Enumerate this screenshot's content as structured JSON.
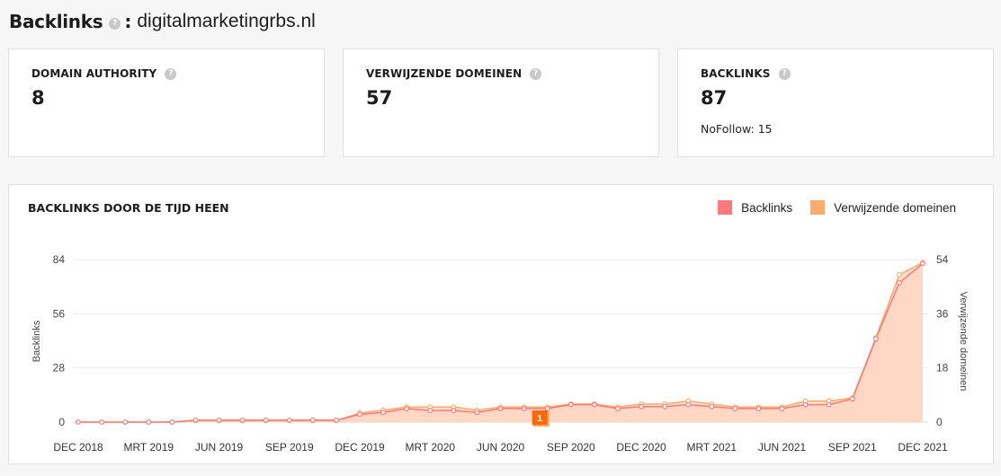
{
  "header": {
    "title": "Backlinks",
    "help": "?",
    "colon": ":",
    "domain": "digitalmarketingrbs.nl"
  },
  "cards": [
    {
      "label": "DOMAIN AUTHORITY",
      "value": "8",
      "help": "?"
    },
    {
      "label": "VERWIJZENDE DOMEINEN",
      "value": "57",
      "help": "?"
    },
    {
      "label": "BACKLINKS",
      "value": "87",
      "help": "?",
      "sub": "NoFollow: 15"
    }
  ],
  "colors": {
    "backlinks": "#f87a7a",
    "domains": "#fdab6d",
    "fill": "#fdd3bd",
    "marker": "#ff6a00"
  },
  "chart": {
    "title": "BACKLINKS DOOR DE TIJD HEEN",
    "annotation": "1"
  },
  "chart_data": {
    "type": "area",
    "title": "BACKLINKS DOOR DE TIJD HEEN",
    "ylabel": "Backlinks",
    "y2label": "Verwijzende domeinen",
    "ylim": [
      0,
      84
    ],
    "y2lim": [
      0,
      54
    ],
    "yticks": [
      0,
      28,
      56,
      84
    ],
    "y2ticks": [
      0,
      18,
      36,
      54
    ],
    "x_ticks": [
      "DEC 2018",
      "MRT 2019",
      "JUN 2019",
      "SEP 2019",
      "DEC 2019",
      "MRT 2020",
      "JUN 2020",
      "SEP 2020",
      "DEC 2020",
      "MRT 2021",
      "JUN 2021",
      "SEP 2021",
      "DEC 2021"
    ],
    "legend_position": "top-right",
    "grid": true,
    "series": [
      {
        "name": "Backlinks",
        "axis": "left",
        "values": [
          0,
          0,
          0,
          0,
          0,
          1,
          1,
          1,
          1,
          1,
          1,
          1,
          4,
          5,
          7,
          6,
          6,
          5,
          7,
          7,
          7,
          9,
          9,
          7,
          8,
          8,
          9,
          8,
          7,
          7,
          7,
          9,
          9,
          12,
          43,
          72,
          82
        ]
      },
      {
        "name": "Verwijzende domeinen",
        "axis": "right",
        "values": [
          0,
          0,
          0,
          0,
          0,
          0.5,
          0.5,
          0.5,
          0.5,
          0.5,
          0.5,
          0.5,
          3,
          4,
          5,
          5,
          5,
          4,
          5,
          5,
          5,
          6,
          6,
          5,
          6,
          6,
          7,
          6,
          5,
          5,
          5,
          7,
          7,
          8,
          28,
          49,
          53
        ]
      }
    ]
  }
}
